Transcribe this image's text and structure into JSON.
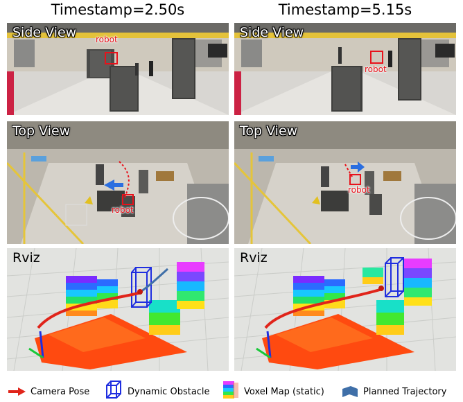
{
  "columns": [
    {
      "title": "Timestamp=2.50s"
    },
    {
      "title": "Timestamp=5.15s"
    }
  ],
  "rows": {
    "side": {
      "label": "Side View"
    },
    "top": {
      "label": "Top View"
    },
    "rviz": {
      "label": "Rviz"
    }
  },
  "annotations": {
    "robot": "robot"
  },
  "legend": {
    "camera_pose": "Camera Pose",
    "dynamic_obstacle": "Dynamic Obstacle",
    "voxel_map": "Voxel Map (static)",
    "planned_trajectory": "Planned Trajectory"
  },
  "colors": {
    "annotation_red": "#e8121b",
    "trajectory_red": "#e0241a",
    "obstacle_blue": "#1f2ee0",
    "trajectory_blue": "#3f6fa8"
  }
}
